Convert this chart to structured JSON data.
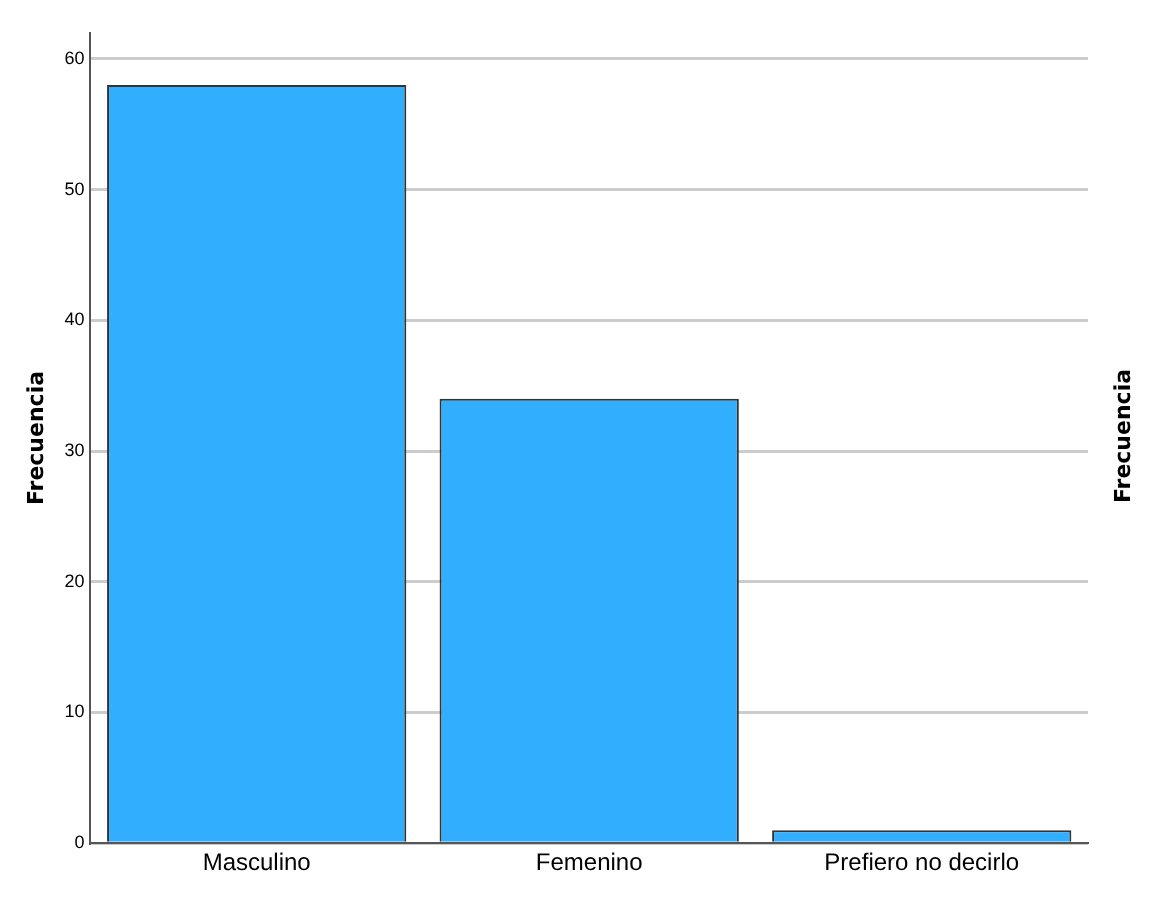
{
  "chart_data": {
    "type": "bar",
    "ylabel": "Frecuencia",
    "categories": [
      "Masculino",
      "Femenino",
      "Prefiero no decirlo"
    ],
    "values": [
      58,
      34,
      1
    ],
    "color": "#31aefe",
    "ylim": [
      0,
      62
    ],
    "yticks": [
      0,
      10,
      20,
      30,
      40,
      50,
      60
    ],
    "grid": "y",
    "annotations": [
      "Frecuencia"
    ]
  }
}
